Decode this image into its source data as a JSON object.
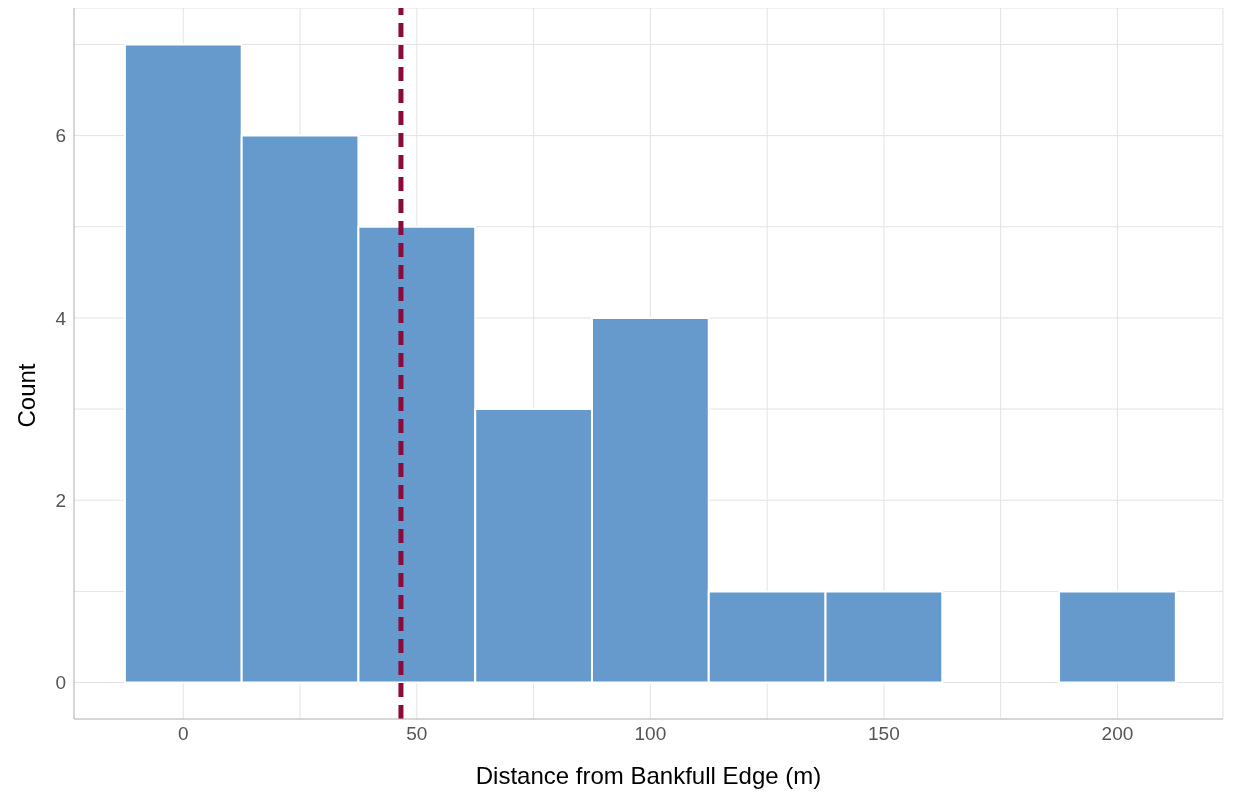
{
  "chart_data": {
    "type": "histogram",
    "xlabel": "Distance from Bankfull Edge (m)",
    "ylabel": "Count",
    "bins": [
      -12.5,
      12.5,
      37.5,
      62.5,
      87.5,
      112.5,
      137.5,
      162.5,
      187.5,
      212.5
    ],
    "values": [
      7,
      6,
      5,
      3,
      4,
      1,
      1,
      0,
      1
    ],
    "color": "#6699cc",
    "xlim": [
      -23.4,
      222.6
    ],
    "xticks": [
      0,
      {
        "value": 25,
        "label": null
      },
      50,
      {
        "value": 75,
        "label": null
      },
      100,
      {
        "value": 125,
        "label": null
      },
      150,
      {
        "value": 175,
        "label": null
      },
      200
    ],
    "ylim": [
      -0.4,
      7.4
    ],
    "yticks": [
      0,
      {
        "value": 1,
        "label": null
      },
      2,
      {
        "value": 3,
        "label": null
      },
      4,
      {
        "value": 5,
        "label": null
      },
      6,
      {
        "value": 7,
        "label": null
      }
    ],
    "grid": true,
    "ref_lines": [
      {
        "axis": "x",
        "value": 46.6,
        "color": "#8b0a3a",
        "line_style": "dashed"
      }
    ]
  }
}
